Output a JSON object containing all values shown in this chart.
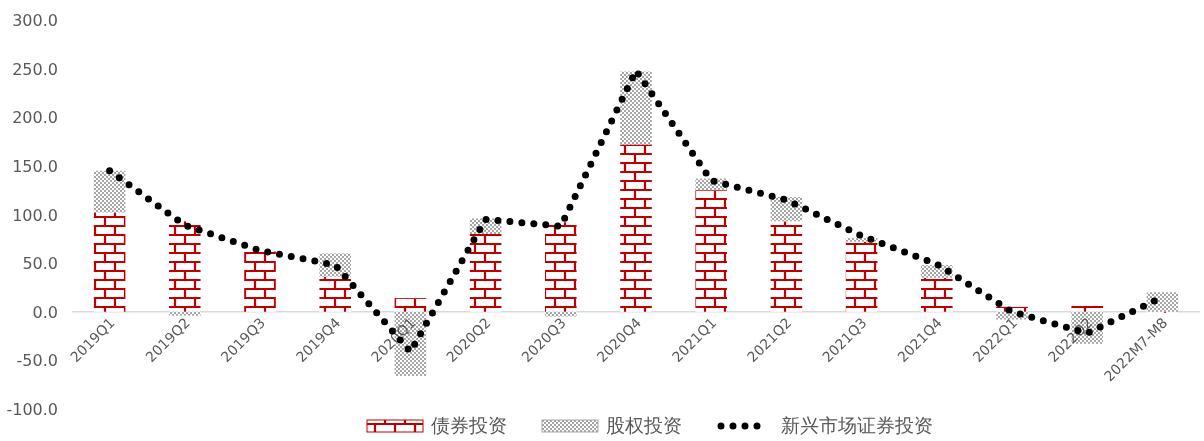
{
  "chart_data": {
    "type": "bar",
    "stacked": true,
    "legend": "bottom",
    "grid": false,
    "categories": [
      "2019Q1",
      "2019Q2",
      "2019Q3",
      "2019Q4",
      "2020Q1",
      "2020Q2",
      "2020Q3",
      "2020Q4",
      "2021Q1",
      "2021Q2",
      "2021Q3",
      "2021Q4",
      "2022Q1",
      "2022Q2",
      "2022M7-M8"
    ],
    "series": [
      {
        "name": "债券投资",
        "color": "#c00000",
        "values": [
          102,
          93,
          62,
          36,
          14,
          80,
          92,
          172,
          125,
          93,
          72,
          35,
          5,
          6,
          -1
        ]
      },
      {
        "name": "股权投资",
        "color": "#a6a6a6",
        "values": [
          43,
          -4,
          0,
          24,
          -66,
          16,
          -5,
          75,
          12,
          25,
          4,
          13,
          -8,
          -33,
          20
        ]
      },
      {
        "name": "新兴市场证券投资",
        "type": "line",
        "line_style": "dotted",
        "color": "#000000",
        "values": [
          145,
          89,
          63,
          48,
          -41,
          95,
          88,
          248,
          135,
          115,
          78,
          49,
          0,
          -22,
          15
        ]
      }
    ],
    "ylim": [
      -100,
      300
    ],
    "yticks": [
      {
        "value": -100,
        "label": "-100.0"
      },
      {
        "value": -50,
        "label": "-50.0"
      },
      {
        "value": 0,
        "label": "0.0"
      },
      {
        "value": 50,
        "label": "50.0"
      },
      {
        "value": 100,
        "label": "100.0"
      },
      {
        "value": 150,
        "label": "150.0"
      },
      {
        "value": 200,
        "label": "200.0"
      },
      {
        "value": 250,
        "label": "250.0"
      },
      {
        "value": 300,
        "label": "300.0"
      }
    ]
  }
}
